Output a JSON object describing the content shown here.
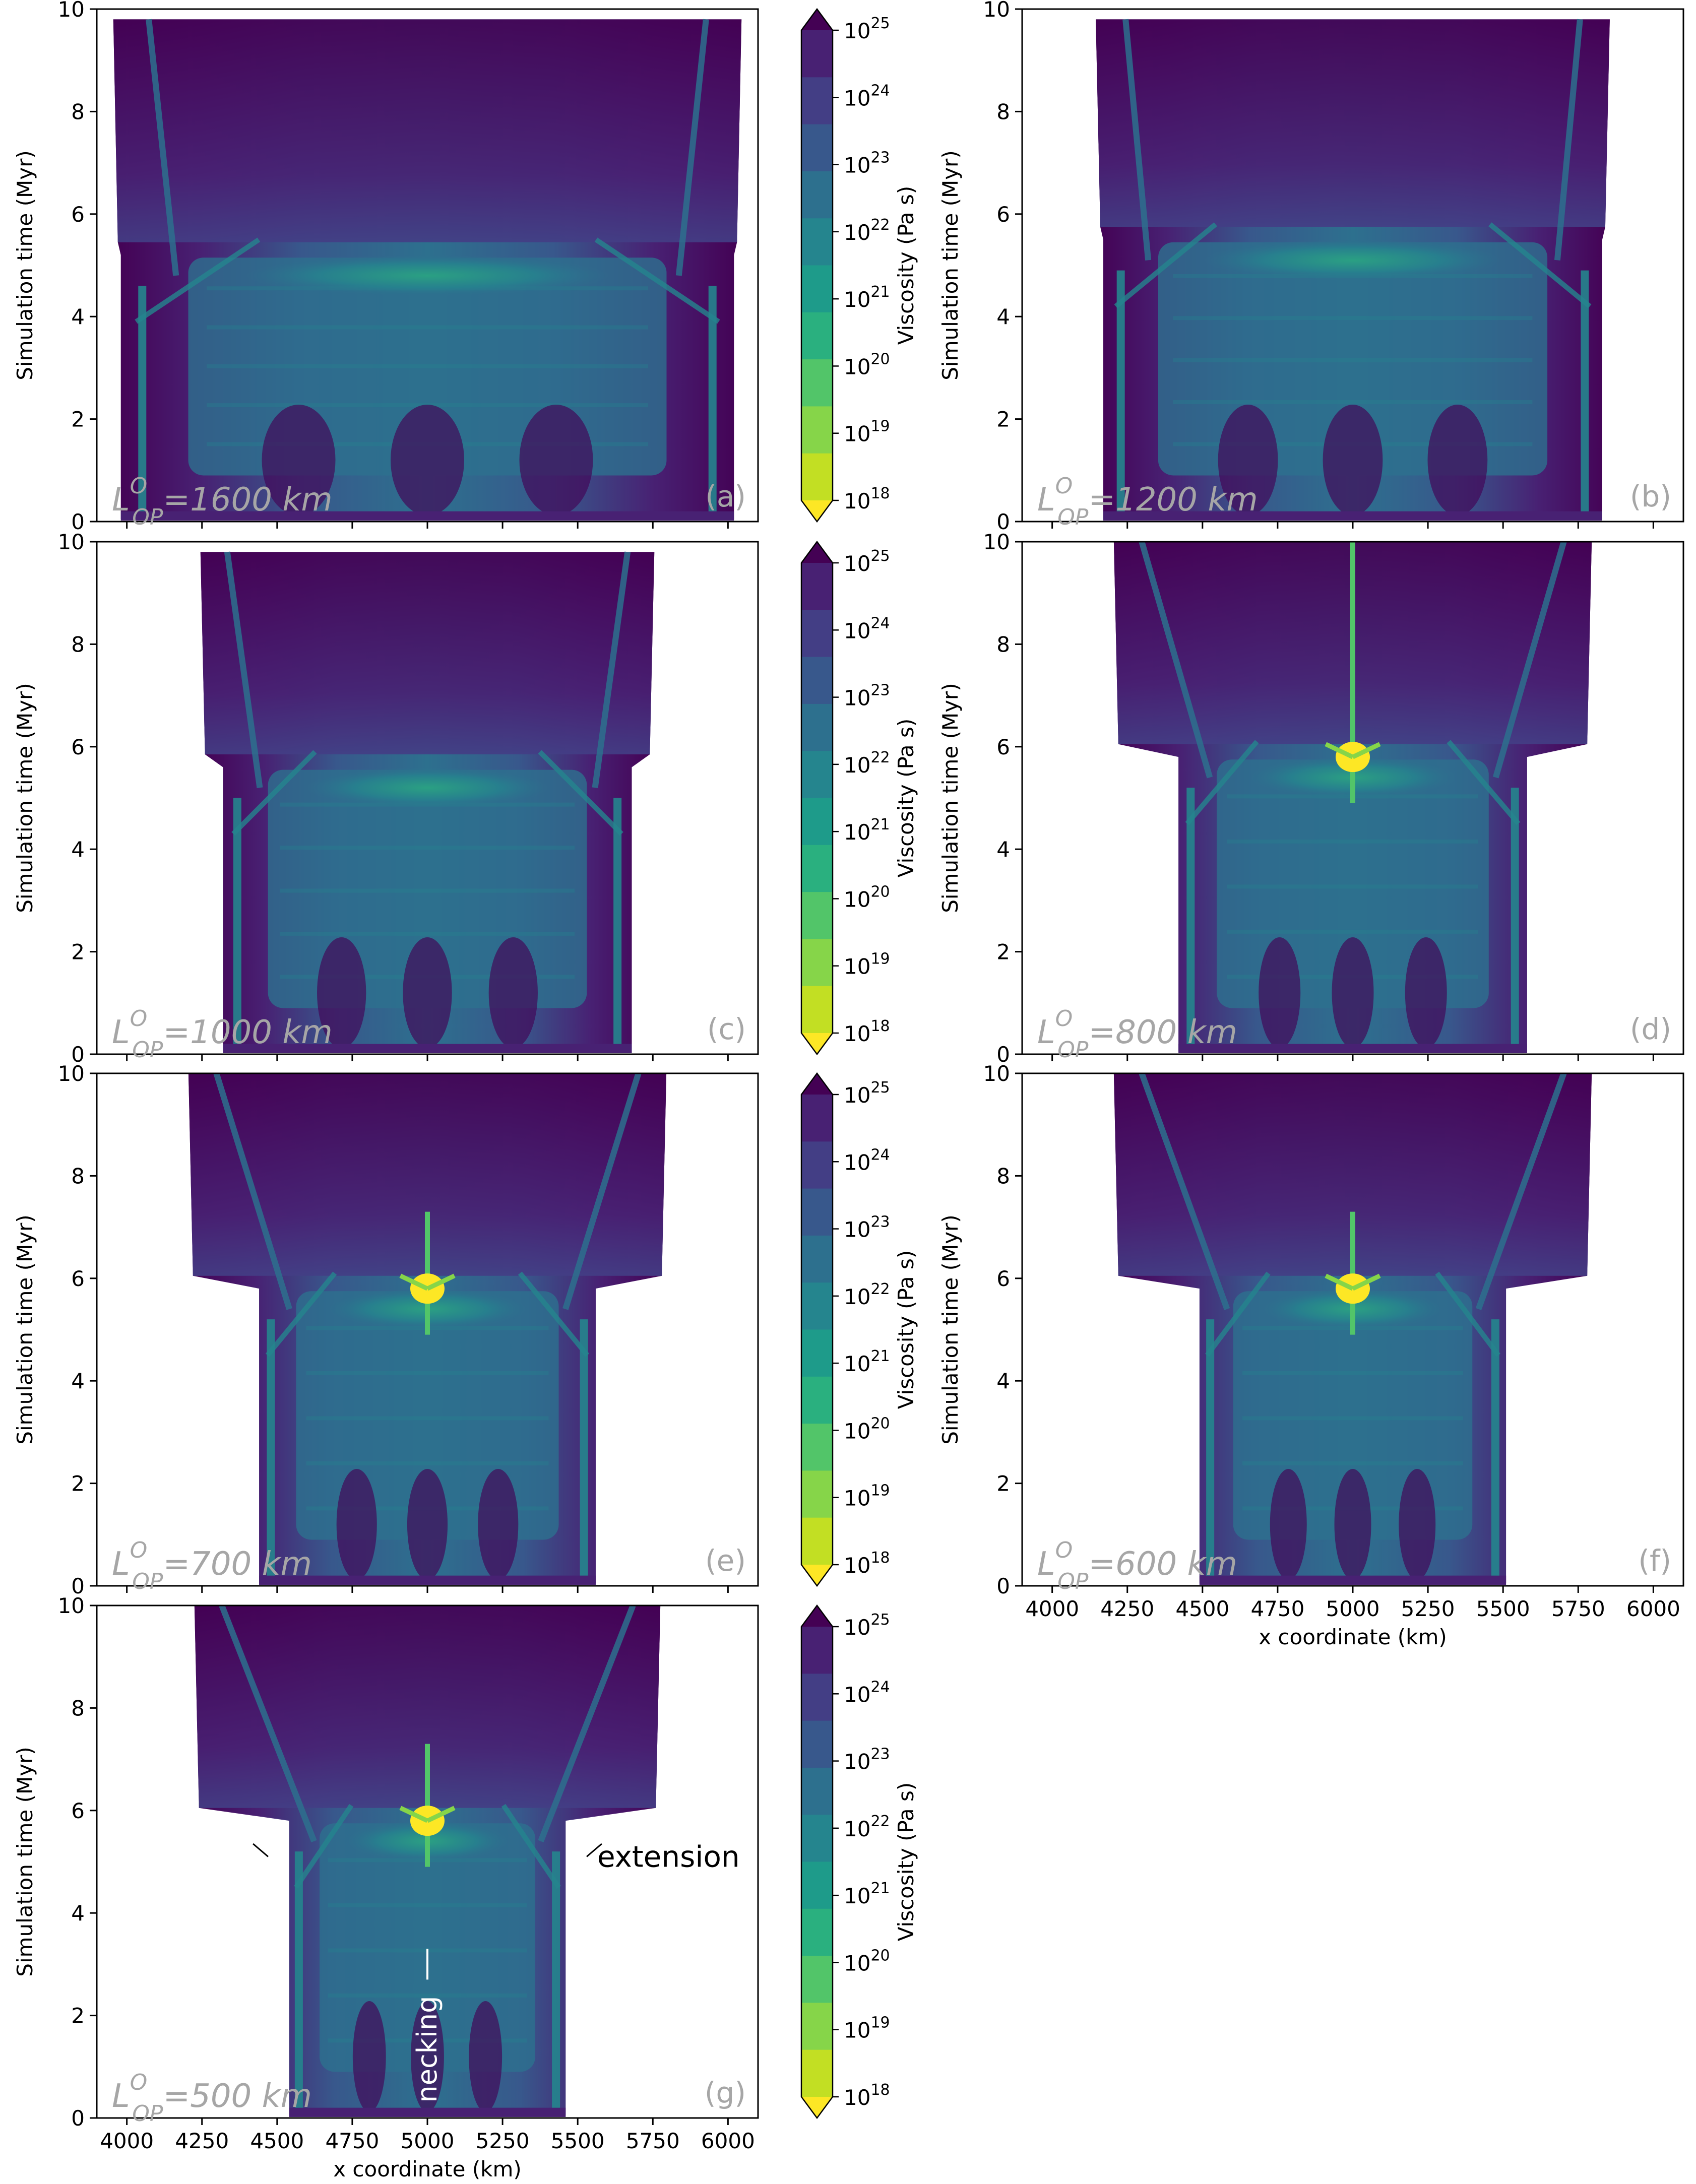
{
  "colors": {
    "viridis_scale": [
      "#fde725",
      "#c2df23",
      "#86d549",
      "#52c569",
      "#2ab07f",
      "#1e9b8a",
      "#25858e",
      "#2d708e",
      "#38588c",
      "#433e85",
      "#482173",
      "#440154"
    ],
    "label_gray": "#a6a6a6",
    "frame": "#000000"
  },
  "colorbar": {
    "label": "Viscosity (Pa s)",
    "tick_base": "10",
    "tick_exponents": [
      "25",
      "24",
      "23",
      "22",
      "21",
      "20",
      "19",
      "18"
    ]
  },
  "chart_data": [
    {
      "type": "heatmap",
      "panel": "(a)",
      "annotation": {
        "main": "L",
        "sup": "O",
        "sub": "OP",
        "rest": "=1600 km"
      },
      "ylabel": "Simulation time (Myr)",
      "xlabel": "",
      "ylim": [
        0,
        10
      ],
      "xlim": [
        3900,
        6100
      ],
      "yticks": [
        "0",
        "2",
        "4",
        "6",
        "8",
        "10"
      ],
      "xticks": [],
      "half_width_km": {
        "bottom": 1020,
        "top": 1030
      },
      "extension_time_myr": 5.2,
      "necking": false
    },
    {
      "type": "heatmap",
      "panel": "(b)",
      "annotation": {
        "main": "L",
        "sup": "O",
        "sub": "OP",
        "rest": "=1200 km"
      },
      "ylabel": "Simulation time (Myr)",
      "xlabel": "",
      "ylim": [
        0,
        10
      ],
      "xlim": [
        3900,
        6100
      ],
      "yticks": [
        "0",
        "2",
        "4",
        "6",
        "8",
        "10"
      ],
      "xticks": [],
      "half_width_km": {
        "bottom": 830,
        "top": 840
      },
      "extension_time_myr": 5.5,
      "necking": false
    },
    {
      "type": "heatmap",
      "panel": "(c)",
      "annotation": {
        "main": "L",
        "sup": "O",
        "sub": "OP",
        "rest": "=1000 km"
      },
      "ylabel": "Simulation time (Myr)",
      "xlabel": "",
      "ylim": [
        0,
        10
      ],
      "xlim": [
        3900,
        6100
      ],
      "yticks": [
        "0",
        "2",
        "4",
        "6",
        "8",
        "10"
      ],
      "xticks": [],
      "half_width_km": {
        "bottom": 680,
        "top": 740
      },
      "extension_time_myr": 5.6,
      "necking": false
    },
    {
      "type": "heatmap",
      "panel": "(d)",
      "annotation": {
        "main": "L",
        "sup": "O",
        "sub": "OP",
        "rest": "=800 km"
      },
      "ylabel": "Simulation time (Myr)",
      "xlabel": "",
      "ylim": [
        0,
        10
      ],
      "xlim": [
        3900,
        6100
      ],
      "yticks": [
        "0",
        "2",
        "4",
        "6",
        "8",
        "10"
      ],
      "xticks": [],
      "half_width_km": {
        "bottom": 580,
        "top": 780
      },
      "extension_time_myr": 5.8,
      "necking": true
    },
    {
      "type": "heatmap",
      "panel": "(e)",
      "annotation": {
        "main": "L",
        "sup": "O",
        "sub": "OP",
        "rest": "=700 km"
      },
      "ylabel": "Simulation time (Myr)",
      "xlabel": "",
      "ylim": [
        0,
        10
      ],
      "xlim": [
        3900,
        6100
      ],
      "yticks": [
        "0",
        "2",
        "4",
        "6",
        "8",
        "10"
      ],
      "xticks": [],
      "half_width_km": {
        "bottom": 560,
        "top": 780
      },
      "extension_time_myr": 5.8,
      "necking": true
    },
    {
      "type": "heatmap",
      "panel": "(f)",
      "annotation": {
        "main": "L",
        "sup": "O",
        "sub": "OP",
        "rest": "=600 km"
      },
      "ylabel": "Simulation time (Myr)",
      "xlabel": "x coordinate (km)",
      "ylim": [
        0,
        10
      ],
      "xlim": [
        3900,
        6100
      ],
      "yticks": [
        "0",
        "2",
        "4",
        "6",
        "8",
        "10"
      ],
      "xticks": [
        "4000",
        "4250",
        "4500",
        "4750",
        "5000",
        "5250",
        "5500",
        "5750",
        "6000"
      ],
      "half_width_km": {
        "bottom": 510,
        "top": 780
      },
      "extension_time_myr": 5.8,
      "necking": true
    },
    {
      "type": "heatmap",
      "panel": "(g)",
      "annotation": {
        "main": "L",
        "sup": "O",
        "sub": "OP",
        "rest": "=500 km"
      },
      "ylabel": "Simulation time (Myr)",
      "xlabel": "x coordinate (km)",
      "ylim": [
        0,
        10
      ],
      "xlim": [
        3900,
        6100
      ],
      "yticks": [
        "0",
        "2",
        "4",
        "6",
        "8",
        "10"
      ],
      "xticks": [
        "4000",
        "4250",
        "4500",
        "4750",
        "5000",
        "5250",
        "5500",
        "5750",
        "6000"
      ],
      "half_width_km": {
        "bottom": 460,
        "top": 760
      },
      "extension_time_myr": 5.8,
      "necking": true,
      "callouts": {
        "extension": "extension",
        "necking": "necking"
      }
    }
  ]
}
